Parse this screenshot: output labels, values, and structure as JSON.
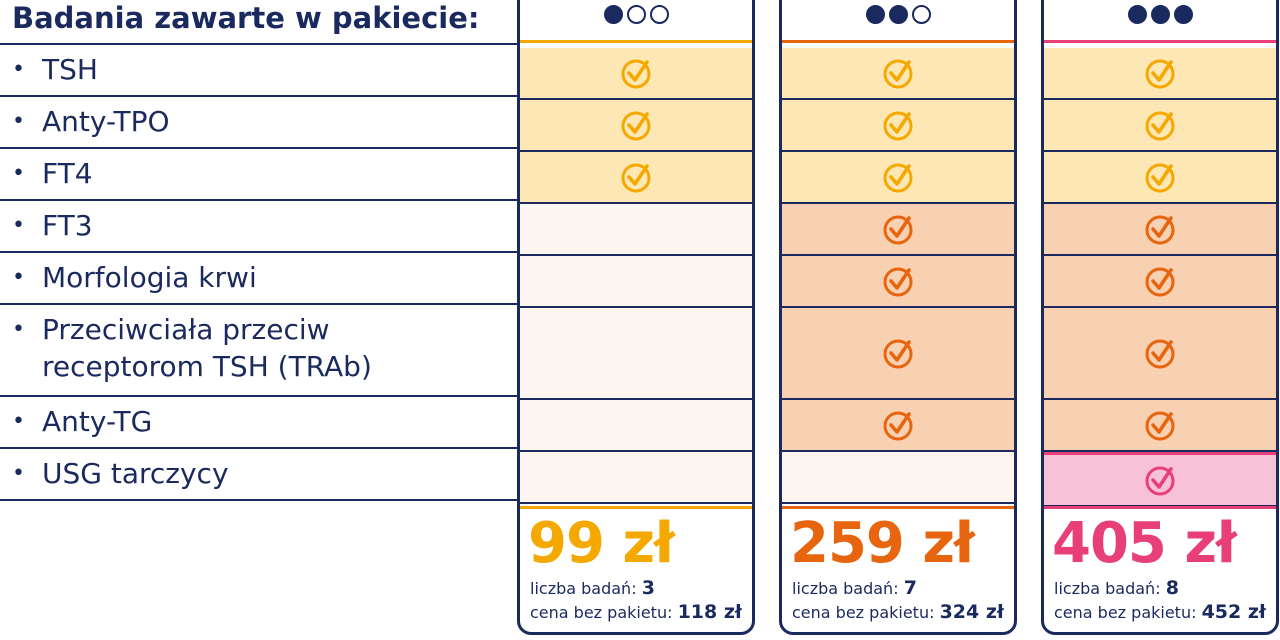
{
  "heading": "Badania zawarte w pakiecie:",
  "tests": [
    {
      "label": "TSH"
    },
    {
      "label": "Anty-TPO"
    },
    {
      "label": "FT4"
    },
    {
      "label": "FT3"
    },
    {
      "label": "Morfologia krwi"
    },
    {
      "label_line1": "Przeciwciała przeciw",
      "label_line2": "receptorom TSH (TRAb)"
    },
    {
      "label": "Anty-TG"
    },
    {
      "label": "USG tarczycy"
    }
  ],
  "bullet": "•",
  "packages": [
    {
      "level": "1 of 3",
      "accent": "#f5a800",
      "included": [
        true,
        true,
        true,
        false,
        false,
        false,
        false,
        false
      ],
      "price": "99 zł",
      "count_label": "liczba badań:",
      "count": "3",
      "orig_label": "cena bez pakietu:",
      "orig_price": "118 zł"
    },
    {
      "level": "2 of 3",
      "accent": "#e8650f",
      "included": [
        true,
        true,
        true,
        true,
        true,
        true,
        true,
        false
      ],
      "price": "259 zł",
      "count_label": "liczba badań:",
      "count": "7",
      "orig_label": "cena bez pakietu:",
      "orig_price": "324 zł"
    },
    {
      "level": "3 of 3",
      "accent": "#e83f7a",
      "included": [
        true,
        true,
        true,
        true,
        true,
        true,
        true,
        true
      ],
      "price": "405 zł",
      "count_label": "liczba badań:",
      "count": "8",
      "orig_label": "cena bez pakietu:",
      "orig_price": "452 zł"
    }
  ],
  "colors": {
    "navy": "#1b2a5e",
    "yellow_fill": "#fde7b5",
    "orange_fill": "#f8d0b2",
    "pink_fill": "#f8c2d6",
    "empty_fill": "#fdf5f0"
  },
  "icons": {
    "included": "check-circle-icon",
    "level_filled": "filled-dot-icon",
    "level_empty": "empty-dot-icon"
  }
}
